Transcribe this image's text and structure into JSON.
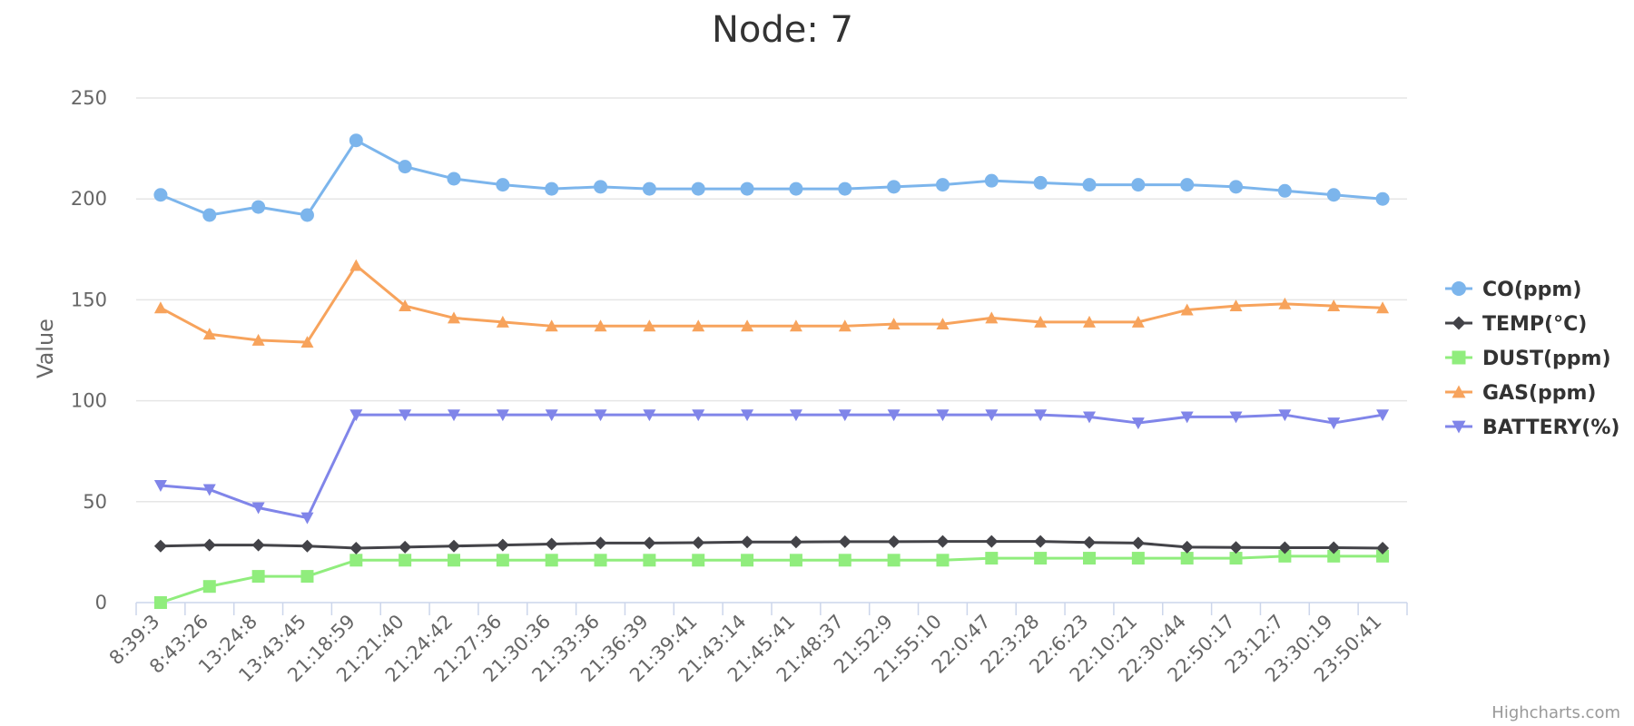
{
  "chart_data": {
    "type": "line",
    "title": "Node: 7",
    "xlabel": "",
    "ylabel": "Value",
    "ylim": [
      0,
      250
    ],
    "yticks": [
      0,
      50,
      100,
      150,
      200,
      250
    ],
    "grid": true,
    "legend_position": "right",
    "credits": "Highcharts.com",
    "categories": [
      "8:39:3",
      "8:43:26",
      "13:24:8",
      "13:43:45",
      "21:18:59",
      "21:21:40",
      "21:24:42",
      "21:27:36",
      "21:30:36",
      "21:33:36",
      "21:36:39",
      "21:39:41",
      "21:43:14",
      "21:45:41",
      "21:48:37",
      "21:52:9",
      "21:55:10",
      "22:0:47",
      "22:3:28",
      "22:6:23",
      "22:10:21",
      "22:30:44",
      "22:50:17",
      "23:12:7",
      "23:30:19",
      "23:50:41"
    ],
    "series": [
      {
        "name": "CO(ppm)",
        "color": "#7cb5ec",
        "marker": "circle",
        "values": [
          202,
          192,
          196,
          192,
          229,
          216,
          210,
          207,
          205,
          206,
          205,
          205,
          205,
          205,
          205,
          206,
          207,
          209,
          208,
          207,
          207,
          207,
          206,
          204,
          202,
          200
        ]
      },
      {
        "name": "TEMP(°C)",
        "color": "#434348",
        "marker": "diamond",
        "values": [
          28,
          28.5,
          28.5,
          28,
          27,
          27.5,
          28,
          28.5,
          29,
          29.5,
          29.5,
          29.7,
          30,
          30,
          30.2,
          30.2,
          30.3,
          30.3,
          30.3,
          29.8,
          29.5,
          27.5,
          27.3,
          27.2,
          27.2,
          27
        ]
      },
      {
        "name": "DUST(ppm)",
        "color": "#90ed7d",
        "marker": "square",
        "values": [
          0,
          8,
          13,
          13,
          21,
          21,
          21,
          21,
          21,
          21,
          21,
          21,
          21,
          21,
          21,
          21,
          21,
          22,
          22,
          22,
          22,
          22,
          22,
          23,
          23,
          23
        ]
      },
      {
        "name": "GAS(ppm)",
        "color": "#f7a35c",
        "marker": "triangle",
        "values": [
          146,
          133,
          130,
          129,
          167,
          147,
          141,
          139,
          137,
          137,
          137,
          137,
          137,
          137,
          137,
          138,
          138,
          141,
          139,
          139,
          139,
          145,
          147,
          148,
          147,
          146
        ]
      },
      {
        "name": "BATTERY(%)",
        "color": "#8085e9",
        "marker": "triangle-down",
        "values": [
          58,
          56,
          47,
          42,
          93,
          93,
          93,
          93,
          93,
          93,
          93,
          93,
          93,
          93,
          93,
          93,
          93,
          93,
          93,
          92,
          89,
          92,
          92,
          93,
          89,
          93
        ]
      }
    ]
  }
}
